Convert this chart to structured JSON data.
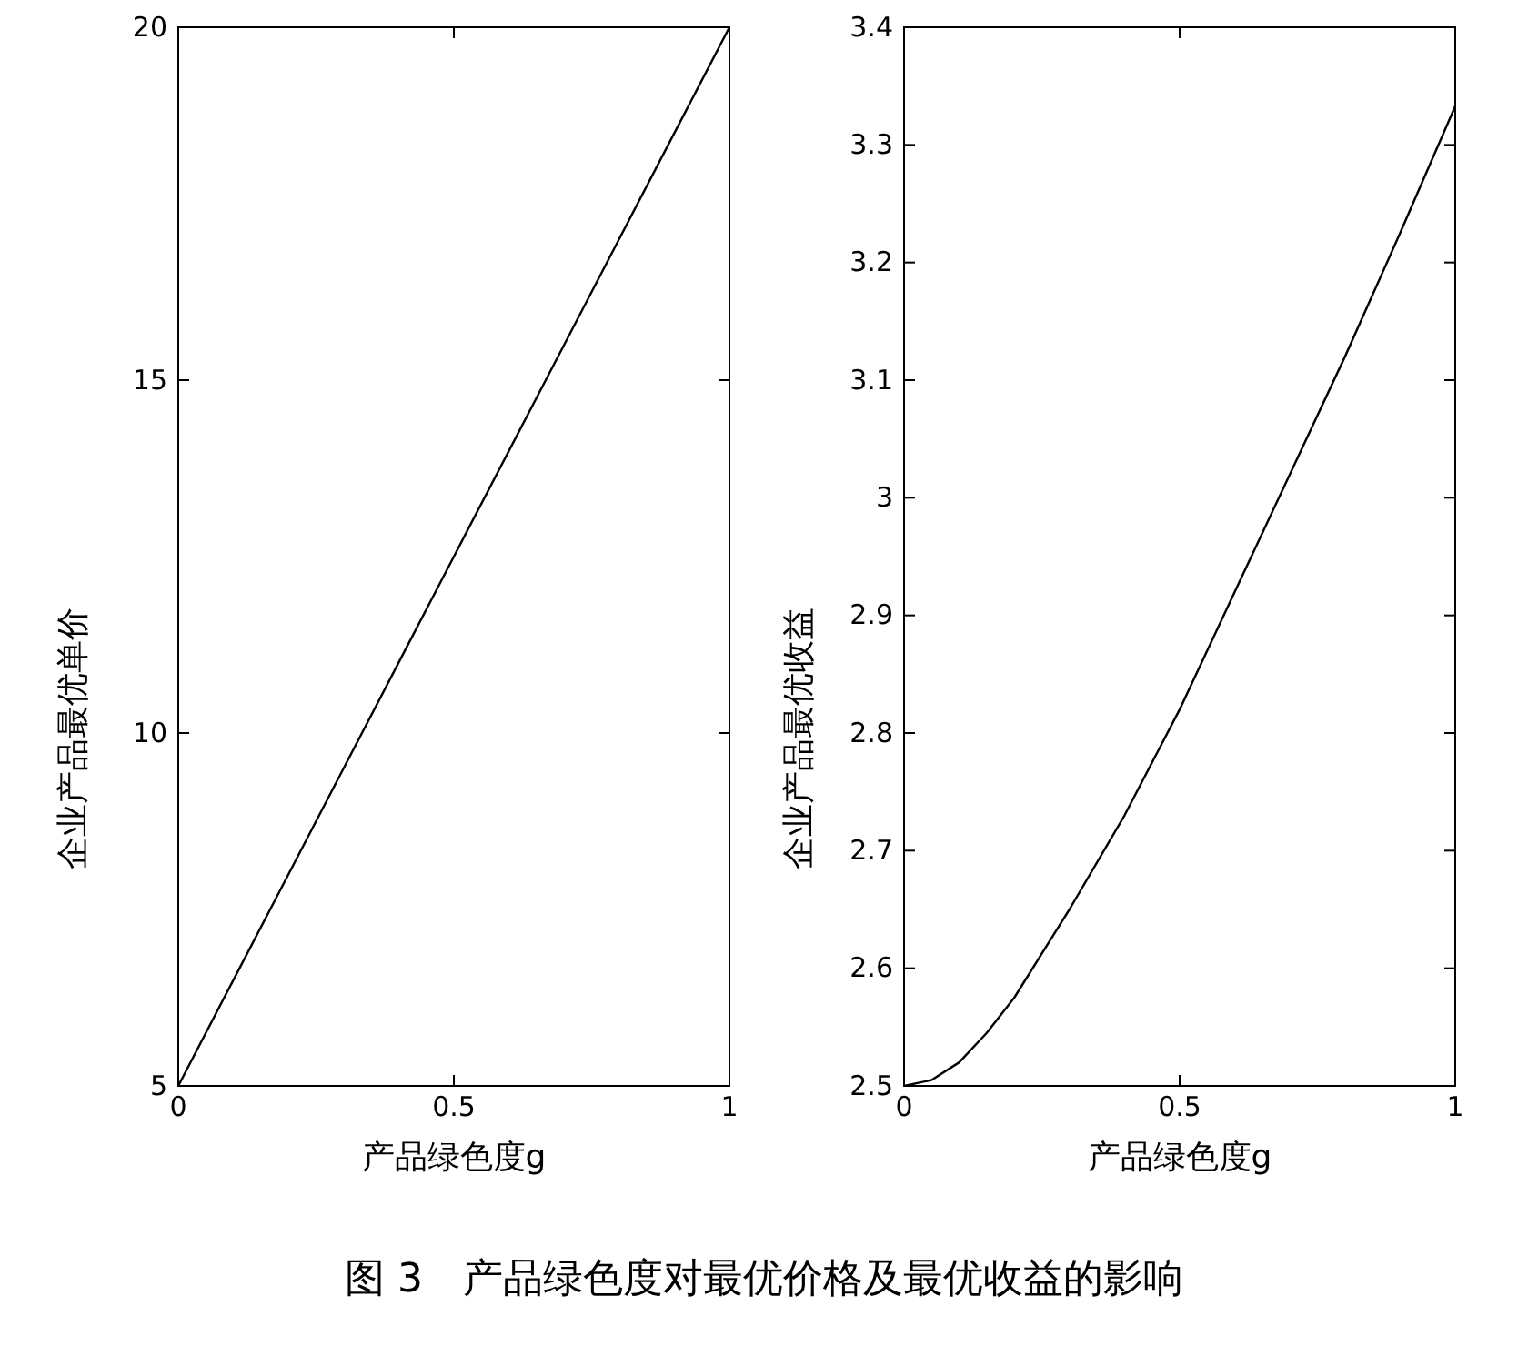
{
  "chart_data": [
    {
      "type": "line",
      "xlabel": "产品绿色度g",
      "ylabel": "企业产品最优单价",
      "x": [
        0,
        0.1,
        0.2,
        0.3,
        0.4,
        0.5,
        0.6,
        0.7,
        0.8,
        0.9,
        1
      ],
      "series": [
        {
          "color": "#000000",
          "values": [
            5,
            6.5,
            8,
            9.5,
            11,
            12.5,
            14,
            15.5,
            17,
            18.5,
            20
          ]
        }
      ],
      "xlim": [
        0,
        1
      ],
      "ylim": [
        5,
        20
      ],
      "xticks": [
        0,
        0.5,
        1
      ],
      "yticks": [
        5,
        10,
        15,
        20
      ],
      "grid": false,
      "marker": "none",
      "line_style": "solid",
      "annotations": [
        "图 3　产品绿色度对最优价格及最优收益的影响"
      ]
    },
    {
      "type": "line",
      "xlabel": "产品绿色度g",
      "ylabel": "企业产品最优收益",
      "x": [
        0,
        0.05,
        0.1,
        0.15,
        0.2,
        0.3,
        0.4,
        0.5,
        0.6,
        0.7,
        0.8,
        0.9,
        1
      ],
      "series": [
        {
          "color": "#000000",
          "values": [
            2.5,
            2.505,
            2.52,
            2.545,
            2.575,
            2.65,
            2.73,
            2.82,
            2.92,
            3.02,
            3.12,
            3.225,
            3.333
          ]
        }
      ],
      "xlim": [
        0,
        1
      ],
      "ylim": [
        2.5,
        3.4
      ],
      "xticks": [
        0,
        0.5,
        1
      ],
      "yticks": [
        2.5,
        2.6,
        2.7,
        2.8,
        2.9,
        3,
        3.1,
        3.2,
        3.3,
        3.4
      ],
      "grid": false,
      "marker": "none",
      "line_style": "solid"
    }
  ]
}
